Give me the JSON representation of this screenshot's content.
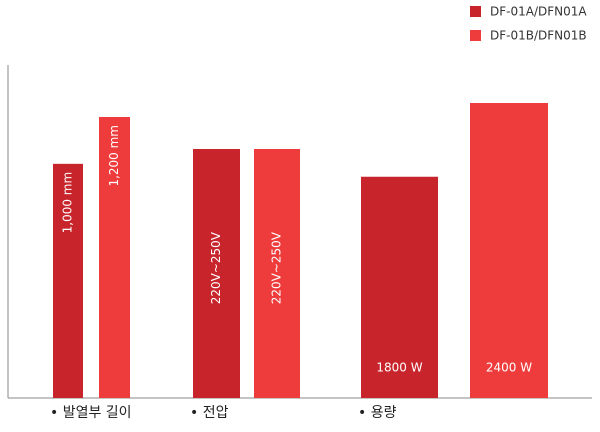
{
  "chart_data": {
    "type": "bar",
    "categories": [
      "• 발열부 길이",
      "• 전압",
      "• 용량"
    ],
    "series": [
      {
        "name": "DF-01A/DFN01A",
        "color": "#c8242b",
        "values": [
          1000,
          250,
          1800
        ],
        "value_labels": [
          "1,000 mm",
          "220V~250V",
          "1800 W"
        ]
      },
      {
        "name": "DF-01B/DFN01B",
        "color": "#ee3b3b",
        "values": [
          1200,
          250,
          2400
        ],
        "value_labels": [
          "1,200 mm",
          "220V~250V",
          "2400 W"
        ]
      }
    ],
    "legend": "top-right"
  }
}
